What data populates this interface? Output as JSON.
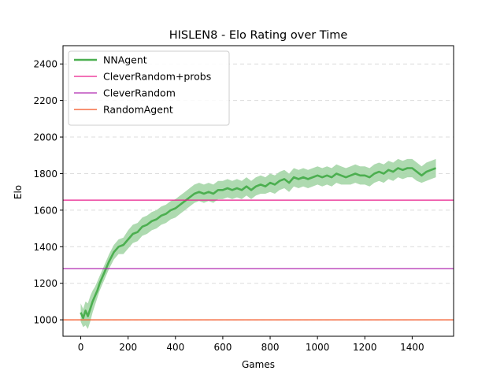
{
  "chart_data": {
    "type": "line",
    "title": "HISLEN8 - Elo Rating over Time",
    "xlabel": "Games",
    "ylabel": "Elo",
    "xlim": [
      -75,
      1575
    ],
    "ylim": [
      910,
      2500
    ],
    "xticks": [
      0,
      200,
      400,
      600,
      800,
      1000,
      1200,
      1400
    ],
    "yticks": [
      1000,
      1200,
      1400,
      1600,
      1800,
      2000,
      2200,
      2400
    ],
    "grid": {
      "y": true,
      "x": false,
      "style": "dashed"
    },
    "legend": "top-left",
    "series": [
      {
        "name": "NNAgent",
        "kind": "line",
        "color": "#4caf50",
        "band_color": "#a5d6a7",
        "x": [
          0,
          10,
          20,
          30,
          40,
          50,
          60,
          70,
          80,
          90,
          100,
          120,
          140,
          160,
          180,
          200,
          220,
          240,
          260,
          280,
          300,
          320,
          340,
          360,
          380,
          400,
          420,
          440,
          460,
          480,
          500,
          520,
          540,
          560,
          580,
          600,
          620,
          640,
          660,
          680,
          700,
          720,
          740,
          760,
          780,
          800,
          820,
          840,
          860,
          880,
          900,
          920,
          940,
          960,
          980,
          1000,
          1020,
          1040,
          1060,
          1080,
          1100,
          1120,
          1140,
          1160,
          1180,
          1200,
          1220,
          1240,
          1260,
          1280,
          1300,
          1320,
          1340,
          1360,
          1380,
          1400,
          1420,
          1440,
          1460,
          1480,
          1500
        ],
        "y": [
          1040,
          1010,
          1050,
          1020,
          1060,
          1100,
          1130,
          1160,
          1200,
          1230,
          1260,
          1320,
          1370,
          1400,
          1410,
          1440,
          1470,
          1480,
          1510,
          1520,
          1540,
          1550,
          1570,
          1580,
          1600,
          1610,
          1630,
          1650,
          1670,
          1690,
          1700,
          1690,
          1700,
          1690,
          1710,
          1710,
          1720,
          1710,
          1720,
          1710,
          1730,
          1710,
          1730,
          1740,
          1730,
          1750,
          1740,
          1760,
          1770,
          1750,
          1780,
          1770,
          1780,
          1770,
          1780,
          1790,
          1780,
          1790,
          1780,
          1800,
          1790,
          1780,
          1790,
          1800,
          1790,
          1790,
          1780,
          1800,
          1810,
          1800,
          1820,
          1810,
          1830,
          1820,
          1830,
          1830,
          1810,
          1790,
          1810,
          1820,
          1830
        ],
        "lower": [
          990,
          960,
          970,
          950,
          990,
          1040,
          1080,
          1120,
          1160,
          1190,
          1220,
          1280,
          1330,
          1360,
          1360,
          1390,
          1420,
          1430,
          1460,
          1470,
          1490,
          1500,
          1520,
          1530,
          1550,
          1560,
          1580,
          1600,
          1620,
          1640,
          1650,
          1640,
          1650,
          1640,
          1660,
          1660,
          1670,
          1660,
          1670,
          1660,
          1680,
          1660,
          1680,
          1690,
          1690,
          1700,
          1690,
          1710,
          1720,
          1700,
          1730,
          1720,
          1730,
          1720,
          1730,
          1740,
          1730,
          1740,
          1730,
          1750,
          1740,
          1740,
          1740,
          1750,
          1740,
          1740,
          1730,
          1750,
          1760,
          1750,
          1770,
          1760,
          1780,
          1770,
          1780,
          1780,
          1760,
          1750,
          1760,
          1770,
          1780
        ],
        "upper": [
          1090,
          1060,
          1100,
          1090,
          1130,
          1160,
          1180,
          1210,
          1240,
          1270,
          1300,
          1360,
          1410,
          1440,
          1450,
          1490,
          1520,
          1530,
          1560,
          1570,
          1590,
          1600,
          1620,
          1630,
          1650,
          1660,
          1680,
          1700,
          1720,
          1740,
          1750,
          1740,
          1750,
          1740,
          1760,
          1760,
          1770,
          1760,
          1770,
          1760,
          1780,
          1760,
          1780,
          1790,
          1780,
          1800,
          1790,
          1810,
          1820,
          1800,
          1830,
          1820,
          1830,
          1820,
          1830,
          1840,
          1830,
          1840,
          1830,
          1850,
          1840,
          1830,
          1840,
          1850,
          1840,
          1840,
          1830,
          1850,
          1860,
          1850,
          1870,
          1860,
          1880,
          1870,
          1880,
          1880,
          1860,
          1840,
          1860,
          1870,
          1880
        ]
      },
      {
        "name": "CleverRandom+probs",
        "kind": "hline",
        "y": 1655,
        "color": "#e91e8c"
      },
      {
        "name": "CleverRandom",
        "kind": "hline",
        "y": 1280,
        "color": "#b02ab0"
      },
      {
        "name": "RandomAgent",
        "kind": "hline",
        "y": 1000,
        "color": "#f4511e"
      }
    ]
  }
}
